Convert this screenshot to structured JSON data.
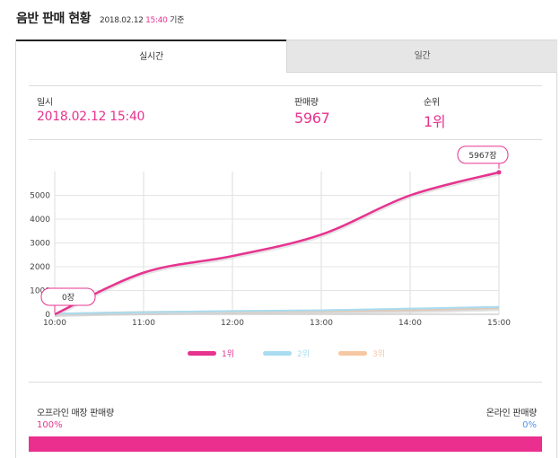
{
  "header": {
    "title": "음반 판매 현황",
    "date": "2018.02.12",
    "time": "15:40",
    "suffix": "기준"
  },
  "tabs": [
    {
      "label": "실시간",
      "active": true
    },
    {
      "label": "일간",
      "active": false
    }
  ],
  "stats": {
    "datetime_label": "일시",
    "datetime_value": "2018.02.12 15:40",
    "sales_label": "판매량",
    "sales_value": "5967",
    "rank_label": "순위",
    "rank_value": "1위"
  },
  "chart_data": {
    "type": "line",
    "x": [
      "10:00",
      "11:00",
      "12:00",
      "13:00",
      "14:00",
      "15:00"
    ],
    "ylim": [
      0,
      6000
    ],
    "yticks": [
      "0",
      "1000",
      "2000",
      "3000",
      "4000",
      "5000"
    ],
    "grid": true,
    "legend_position": "bottom",
    "series": [
      {
        "name": "1위",
        "color": "#e6338f",
        "values": [
          0,
          1750,
          2450,
          3350,
          5000,
          5967
        ]
      },
      {
        "name": "2위",
        "color": "#a9dcf0",
        "values": [
          30,
          90,
          140,
          170,
          240,
          310
        ]
      },
      {
        "name": "3위",
        "color": "#f6c7a3",
        "values": [
          20,
          100,
          120,
          130,
          170,
          270
        ]
      }
    ],
    "annotations": [
      {
        "text": "0장",
        "x": "10:00",
        "y": 0
      },
      {
        "text": "5967장",
        "x": "15:00",
        "y": 5967
      }
    ]
  },
  "ratio": {
    "offline_label": "오프라인 매장 판매량",
    "offline_value": "100%",
    "offline_fraction": 1.0,
    "online_label": "온라인 판매량",
    "online_value": "0%",
    "offline_color": "#ea2f8f",
    "online_color": "#4f94e8"
  }
}
